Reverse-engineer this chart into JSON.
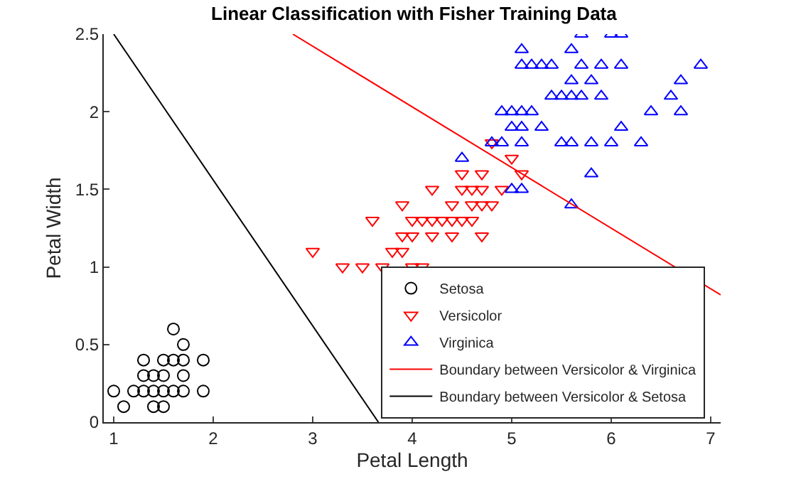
{
  "chart_data": {
    "type": "scatter",
    "title": "Linear Classification with Fisher Training Data",
    "xlabel": "Petal Length",
    "ylabel": "Petal Width",
    "xlim": [
      0.9,
      7.1
    ],
    "xticks": [
      1,
      2,
      3,
      4,
      5,
      6,
      7
    ],
    "ylim": [
      0,
      2.5
    ],
    "yticks": [
      0,
      0.5,
      1,
      1.5,
      2,
      2.5
    ],
    "grid": false,
    "legend": "bottom right",
    "series": [
      {
        "name": "Setosa",
        "color": "#000000",
        "marker": "circle",
        "x": [
          1.0,
          1.1,
          1.2,
          1.3,
          1.3,
          1.3,
          1.4,
          1.4,
          1.4,
          1.5,
          1.5,
          1.5,
          1.5,
          1.6,
          1.6,
          1.6,
          1.7,
          1.7,
          1.7,
          1.7,
          1.9,
          1.9
        ],
        "values": [
          0.2,
          0.1,
          0.2,
          0.2,
          0.3,
          0.4,
          0.1,
          0.2,
          0.3,
          0.1,
          0.2,
          0.3,
          0.4,
          0.2,
          0.4,
          0.6,
          0.2,
          0.3,
          0.4,
          0.5,
          0.2,
          0.4
        ]
      },
      {
        "name": "Versicolor",
        "color": "#ff0000",
        "marker": "triangle-down",
        "x": [
          3.0,
          3.3,
          3.5,
          3.6,
          3.7,
          3.8,
          3.9,
          3.9,
          3.9,
          4.0,
          4.0,
          4.0,
          4.1,
          4.1,
          4.2,
          4.2,
          4.2,
          4.3,
          4.4,
          4.4,
          4.4,
          4.5,
          4.5,
          4.5,
          4.6,
          4.6,
          4.6,
          4.7,
          4.7,
          4.7,
          4.7,
          4.8,
          4.8,
          4.9,
          5.0,
          5.1
        ],
        "values": [
          1.1,
          1.0,
          1.0,
          1.3,
          1.0,
          1.1,
          1.1,
          1.2,
          1.4,
          1.0,
          1.2,
          1.3,
          1.0,
          1.3,
          1.2,
          1.3,
          1.5,
          1.3,
          1.2,
          1.3,
          1.4,
          1.3,
          1.5,
          1.6,
          1.3,
          1.4,
          1.5,
          1.2,
          1.4,
          1.5,
          1.6,
          1.4,
          1.8,
          1.5,
          1.7,
          1.6
        ]
      },
      {
        "name": "Virginica",
        "color": "#0000ff",
        "marker": "triangle",
        "x": [
          4.5,
          4.8,
          4.9,
          4.9,
          5.0,
          5.0,
          5.0,
          5.1,
          5.1,
          5.1,
          5.1,
          5.1,
          5.1,
          5.2,
          5.2,
          5.3,
          5.3,
          5.4,
          5.4,
          5.5,
          5.5,
          5.6,
          5.6,
          5.6,
          5.6,
          5.6,
          5.7,
          5.7,
          5.7,
          5.8,
          5.8,
          5.8,
          5.9,
          5.9,
          6.0,
          6.0,
          6.1,
          6.1,
          6.1,
          6.3,
          6.4,
          6.6,
          6.7,
          6.7,
          6.9
        ],
        "values": [
          1.7,
          1.8,
          1.8,
          2.0,
          1.5,
          1.9,
          2.0,
          1.5,
          1.8,
          1.9,
          2.0,
          2.3,
          2.4,
          2.0,
          2.3,
          1.9,
          2.3,
          2.1,
          2.3,
          1.8,
          2.1,
          1.4,
          1.8,
          2.1,
          2.2,
          2.4,
          2.1,
          2.3,
          2.5,
          1.6,
          1.8,
          2.2,
          2.1,
          2.3,
          1.8,
          2.5,
          1.9,
          2.3,
          2.5,
          1.8,
          2.0,
          2.1,
          2.0,
          2.2,
          2.3
        ]
      },
      {
        "name": "Boundary between Versicolor & Virginica",
        "type": "line",
        "color": "#ff0000",
        "marker": "none",
        "x": [
          2.8,
          7.1
        ],
        "values": [
          2.5,
          0.82
        ]
      },
      {
        "name": "Boundary between Versicolor & Setosa",
        "type": "line",
        "color": "#000000",
        "marker": "none",
        "x": [
          1.0,
          3.66
        ],
        "values": [
          2.5,
          0
        ]
      }
    ]
  }
}
